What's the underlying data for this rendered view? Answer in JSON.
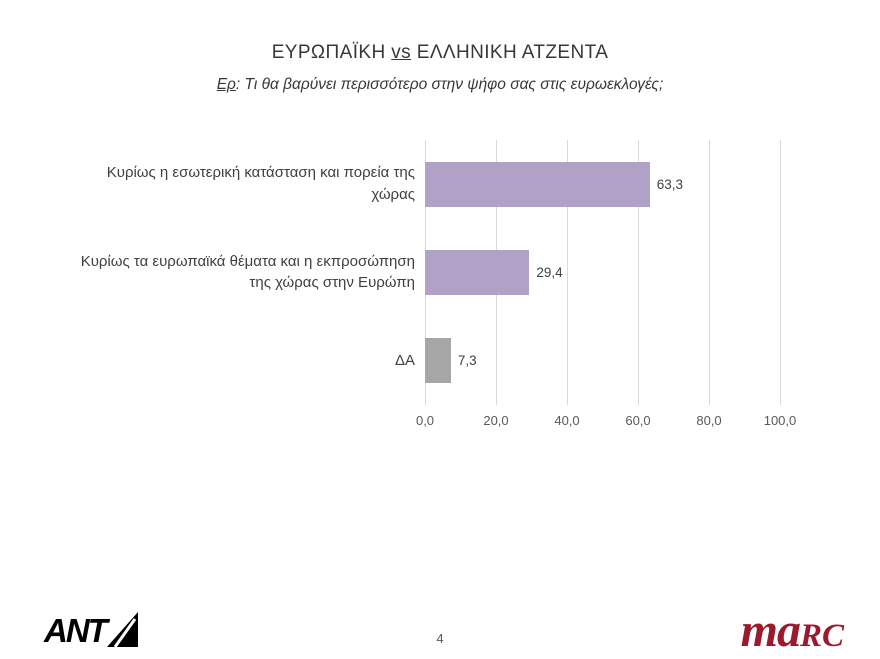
{
  "header": {
    "title_part1": "ΕΥΡΩΠΑΪΚΗ ",
    "title_vs": "vs",
    "title_part2": " ΕΛΛΗΝΙΚΗ ΑΤΖΕΝΤΑ",
    "subtitle_prefix": "Ερ",
    "subtitle_rest": ": Τι θα βαρύνει περισσότερο στην ψήφο σας στις ευρωεκλογές;"
  },
  "chart_data": {
    "type": "bar",
    "orientation": "horizontal",
    "title": "ΕΥΡΩΠΑΪΚΗ vs ΕΛΛΗΝΙΚΗ ΑΤΖΕΝΤΑ",
    "subtitle": "Ερ: Τι θα βαρύνει περισσότερο στην ψήφο σας στις ευρωεκλογές;",
    "categories": [
      "Κυρίως η εσωτερική κατάσταση και πορεία της χώρας",
      "Κυρίως τα ευρωπαϊκά θέματα και η εκπροσώπηση της χώρας στην Ευρώπη",
      "ΔΑ"
    ],
    "values": [
      63.3,
      29.4,
      7.3
    ],
    "value_labels": [
      "63,3",
      "29,4",
      "7,3"
    ],
    "x_ticks": [
      "0,0",
      "20,0",
      "40,0",
      "60,0",
      "80,0",
      "100,0"
    ],
    "xlim": [
      0,
      100
    ],
    "bar_colors": [
      "#b2a1c7",
      "#b2a1c7",
      "#a6a6a6"
    ],
    "grid": true,
    "legend": false
  },
  "footer": {
    "page_number": "4",
    "ant1_text": "ANT",
    "marc_prefix": "ma",
    "marc_suffix": "RC"
  },
  "colors": {
    "bar_purple": "#b2a1c7",
    "bar_gray": "#a6a6a6",
    "gridline": "#d9d9d9",
    "marc_red": "#9a1b2e"
  }
}
